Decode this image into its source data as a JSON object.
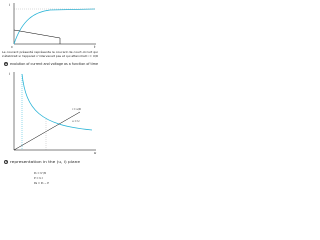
{
  "figure_a": {
    "axis_y": "i",
    "axis_x": "t",
    "origin": "0",
    "note": "Le courant présenté représente le courant de court-circuit qui",
    "note_2": "s'établirait si l'appareil n'intervenait pas et qui atteindrait i = U/R",
    "marker": "a",
    "caption": "evolution of current and voltage as a function of time"
  },
  "figure_b": {
    "axis_y": "i",
    "axis_x": "u",
    "label_1": "u = U",
    "label_2": "i = u/R",
    "marker": "b",
    "caption": "representation in the (u, i) plane",
    "equations": [
      "P₀ = U²/R",
      "P = U·I",
      "Pa = P₀ − P"
    ]
  }
}
